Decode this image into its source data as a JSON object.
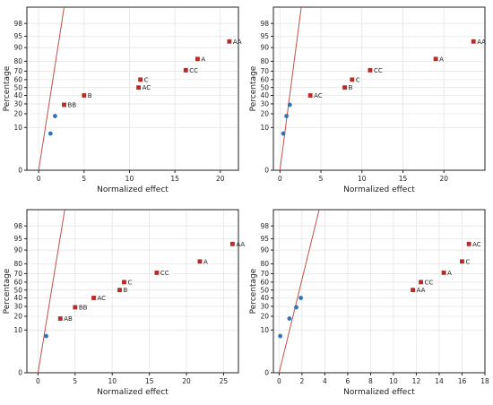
{
  "colors": {
    "significant": "#b52b27",
    "non_significant": "#2e75b6",
    "reference_line": "#c0504d"
  },
  "chart_data": [
    {
      "type": "scatter",
      "title": "",
      "xlabel": "Normalized effect",
      "ylabel": "Percentage",
      "xlim": [
        -1.3,
        22
      ],
      "xticks": [
        0,
        5,
        10,
        15,
        20
      ],
      "yticks": [
        0,
        10,
        20,
        30,
        40,
        50,
        60,
        70,
        80,
        90,
        95,
        98
      ],
      "grid": true,
      "reference_line": [
        [
          0,
          0
        ],
        [
          2.8,
          99.5
        ]
      ],
      "series": [
        {
          "marker": "square",
          "points": [
            {
              "x": 2.8,
              "y": 29,
              "label": "BB"
            },
            {
              "x": 5.0,
              "y": 40,
              "label": "B"
            },
            {
              "x": 11.0,
              "y": 50,
              "label": "AC"
            },
            {
              "x": 11.2,
              "y": 60,
              "label": "C"
            },
            {
              "x": 16.2,
              "y": 71,
              "label": "CC"
            },
            {
              "x": 17.5,
              "y": 82,
              "label": "A"
            },
            {
              "x": 21.0,
              "y": 93,
              "label": "AA"
            }
          ]
        },
        {
          "marker": "circle",
          "points": [
            {
              "x": 1.3,
              "y": 7,
              "label": ""
            },
            {
              "x": 1.8,
              "y": 18,
              "label": ""
            }
          ]
        }
      ]
    },
    {
      "type": "scatter",
      "title": "",
      "xlabel": "Normalized effect",
      "ylabel": "Percentage",
      "xlim": [
        -0.8,
        25
      ],
      "xticks": [
        0,
        5,
        10,
        15,
        20
      ],
      "yticks": [
        0,
        10,
        20,
        30,
        40,
        50,
        60,
        70,
        80,
        90,
        95,
        98
      ],
      "grid": true,
      "reference_line": [
        [
          0,
          0
        ],
        [
          2.6,
          99.5
        ]
      ],
      "series": [
        {
          "marker": "square",
          "points": [
            {
              "x": 3.7,
              "y": 40,
              "label": "AC"
            },
            {
              "x": 7.9,
              "y": 50,
              "label": "B"
            },
            {
              "x": 8.8,
              "y": 60,
              "label": "C"
            },
            {
              "x": 11.0,
              "y": 71,
              "label": "CC"
            },
            {
              "x": 19.0,
              "y": 82,
              "label": "A"
            },
            {
              "x": 23.6,
              "y": 93,
              "label": "AA"
            }
          ]
        },
        {
          "marker": "circle",
          "points": [
            {
              "x": 0.4,
              "y": 7,
              "label": ""
            },
            {
              "x": 0.8,
              "y": 18,
              "label": ""
            },
            {
              "x": 1.2,
              "y": 29,
              "label": ""
            }
          ]
        }
      ]
    },
    {
      "type": "scatter",
      "title": "",
      "xlabel": "Normalized effect",
      "ylabel": "Percentage",
      "xlim": [
        -1.5,
        27
      ],
      "xticks": [
        0,
        5,
        10,
        15,
        20,
        25
      ],
      "yticks": [
        0,
        10,
        20,
        30,
        40,
        50,
        60,
        70,
        80,
        90,
        95,
        98
      ],
      "grid": true,
      "reference_line": [
        [
          0,
          0
        ],
        [
          3.6,
          99.5
        ]
      ],
      "series": [
        {
          "marker": "square",
          "points": [
            {
              "x": 3.0,
              "y": 18,
              "label": "AB"
            },
            {
              "x": 5.0,
              "y": 29,
              "label": "BB"
            },
            {
              "x": 7.5,
              "y": 40,
              "label": "AC"
            },
            {
              "x": 11.0,
              "y": 50,
              "label": "B"
            },
            {
              "x": 11.6,
              "y": 60,
              "label": "C"
            },
            {
              "x": 16.0,
              "y": 71,
              "label": "CC"
            },
            {
              "x": 21.8,
              "y": 82,
              "label": "A"
            },
            {
              "x": 26.2,
              "y": 93,
              "label": "AA"
            }
          ]
        },
        {
          "marker": "circle",
          "points": [
            {
              "x": 1.1,
              "y": 7,
              "label": ""
            }
          ]
        }
      ]
    },
    {
      "type": "scatter",
      "title": "",
      "xlabel": "Normalized effect",
      "ylabel": "Percentage",
      "xlim": [
        -0.5,
        18
      ],
      "xticks": [
        0,
        2,
        4,
        6,
        8,
        10,
        12,
        14,
        16,
        18
      ],
      "yticks": [
        0,
        10,
        20,
        30,
        40,
        50,
        60,
        70,
        80,
        90,
        95,
        98
      ],
      "grid": true,
      "reference_line": [
        [
          0,
          0
        ],
        [
          3.5,
          99.5
        ]
      ],
      "series": [
        {
          "marker": "square",
          "points": [
            {
              "x": 11.7,
              "y": 50,
              "label": "AA"
            },
            {
              "x": 12.4,
              "y": 60,
              "label": "CC"
            },
            {
              "x": 14.4,
              "y": 71,
              "label": "A"
            },
            {
              "x": 16.0,
              "y": 82,
              "label": "C"
            },
            {
              "x": 16.6,
              "y": 93,
              "label": "AC"
            }
          ]
        },
        {
          "marker": "circle",
          "points": [
            {
              "x": 0.1,
              "y": 7,
              "label": ""
            },
            {
              "x": 0.9,
              "y": 18,
              "label": ""
            },
            {
              "x": 1.5,
              "y": 29,
              "label": ""
            },
            {
              "x": 1.9,
              "y": 40,
              "label": ""
            }
          ]
        }
      ]
    }
  ]
}
